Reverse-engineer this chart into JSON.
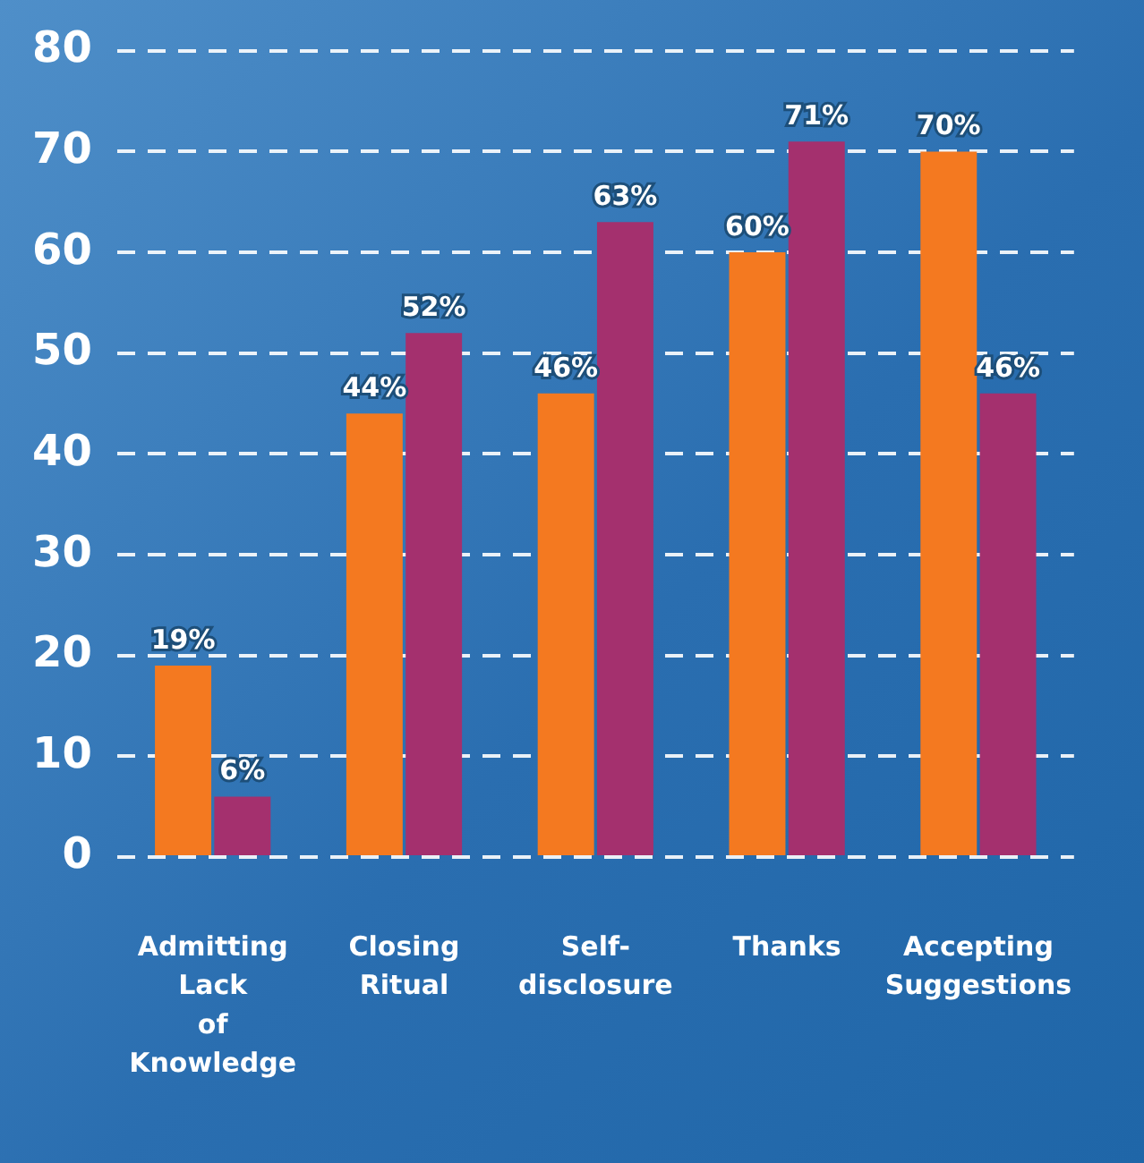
{
  "chart_data": {
    "type": "bar",
    "categories": [
      "Admitting Lack of Knowledge",
      "Closing Ritual",
      "Self-disclosure",
      "Thanks",
      "Accepting Suggestions"
    ],
    "series": [
      {
        "color": "#f47920",
        "values": [
          19,
          44,
          46,
          60,
          70
        ],
        "value_labels": [
          "19%",
          "44%",
          "46%",
          "60%",
          "70%"
        ]
      },
      {
        "color": "#a4306e",
        "values": [
          6,
          52,
          63,
          71,
          46
        ],
        "value_labels": [
          "6%",
          "52%",
          "63%",
          "71%",
          "46%"
        ]
      }
    ],
    "ylim": [
      0,
      80
    ],
    "yticks": [
      0,
      10,
      20,
      30,
      40,
      50,
      60,
      70,
      80
    ],
    "grid": "y",
    "legend": false
  }
}
